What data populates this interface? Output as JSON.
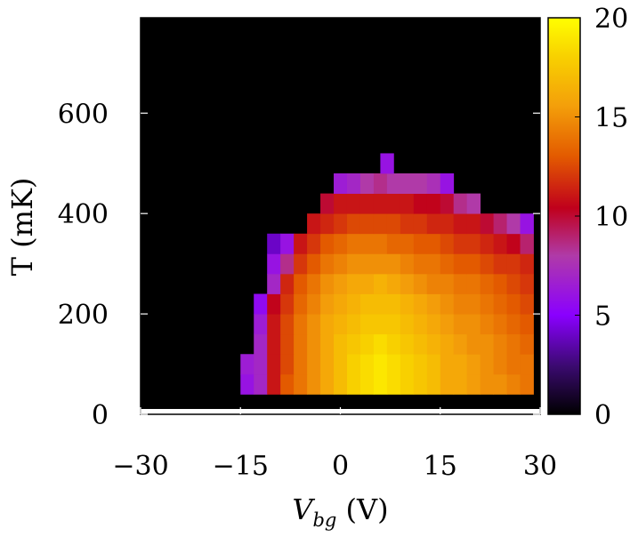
{
  "chart_data": {
    "type": "heatmap",
    "xlabel_main": "V",
    "xlabel_sub": "bg",
    "xlabel_unit": " (V)",
    "ylabel": "T (mK)",
    "xlim": [
      -30,
      30
    ],
    "ylim": [
      0,
      790
    ],
    "x_ticks": [
      {
        "value": -30,
        "label": "−30"
      },
      {
        "value": -15,
        "label": "−15"
      },
      {
        "value": 0,
        "label": "0"
      },
      {
        "value": 15,
        "label": "15"
      },
      {
        "value": 30,
        "label": "30"
      }
    ],
    "y_ticks": [
      {
        "value": 0,
        "label": "0"
      },
      {
        "value": 200,
        "label": "200"
      },
      {
        "value": 400,
        "label": "400"
      },
      {
        "value": 600,
        "label": "600"
      }
    ],
    "colorbar": {
      "min": 0,
      "max": 20,
      "ticks": [
        {
          "value": 0,
          "label": "0"
        },
        {
          "value": 5,
          "label": "5"
        },
        {
          "value": 10,
          "label": "10"
        },
        {
          "value": 15,
          "label": "15"
        },
        {
          "value": 20,
          "label": "20"
        }
      ],
      "colormap": [
        "#000000",
        "#3a0a6e",
        "#8a00ff",
        "#b03aa8",
        "#c0001c",
        "#e35a00",
        "#f4a00a",
        "#f8d000",
        "#ffff00"
      ]
    },
    "background_color": "#000000",
    "grid": false,
    "cells": [
      {
        "x": -14,
        "y": 60,
        "v": 6
      },
      {
        "x": -12,
        "y": 60,
        "v": 7
      },
      {
        "x": -10,
        "y": 60,
        "v": 11
      },
      {
        "x": -8,
        "y": 60,
        "v": 13
      },
      {
        "x": -6,
        "y": 60,
        "v": 14
      },
      {
        "x": -4,
        "y": 60,
        "v": 15
      },
      {
        "x": -2,
        "y": 60,
        "v": 16
      },
      {
        "x": 0,
        "y": 60,
        "v": 17
      },
      {
        "x": 2,
        "y": 60,
        "v": 18
      },
      {
        "x": 4,
        "y": 60,
        "v": 18.5
      },
      {
        "x": 6,
        "y": 60,
        "v": 19
      },
      {
        "x": 8,
        "y": 60,
        "v": 18.5
      },
      {
        "x": 10,
        "y": 60,
        "v": 18
      },
      {
        "x": 12,
        "y": 60,
        "v": 17.5
      },
      {
        "x": 14,
        "y": 60,
        "v": 17
      },
      {
        "x": 16,
        "y": 60,
        "v": 16
      },
      {
        "x": 18,
        "y": 60,
        "v": 16
      },
      {
        "x": 20,
        "y": 60,
        "v": 15.5
      },
      {
        "x": 22,
        "y": 60,
        "v": 15
      },
      {
        "x": 24,
        "y": 60,
        "v": 15
      },
      {
        "x": 26,
        "y": 60,
        "v": 14.5
      },
      {
        "x": 28,
        "y": 60,
        "v": 14
      },
      {
        "x": -14,
        "y": 100,
        "v": 6.5
      },
      {
        "x": -12,
        "y": 100,
        "v": 7
      },
      {
        "x": -10,
        "y": 100,
        "v": 11
      },
      {
        "x": -8,
        "y": 100,
        "v": 12.5
      },
      {
        "x": -6,
        "y": 100,
        "v": 14
      },
      {
        "x": -4,
        "y": 100,
        "v": 15
      },
      {
        "x": -2,
        "y": 100,
        "v": 16
      },
      {
        "x": 0,
        "y": 100,
        "v": 17
      },
      {
        "x": 2,
        "y": 100,
        "v": 18
      },
      {
        "x": 4,
        "y": 100,
        "v": 18.5
      },
      {
        "x": 6,
        "y": 100,
        "v": 19
      },
      {
        "x": 8,
        "y": 100,
        "v": 18.5
      },
      {
        "x": 10,
        "y": 100,
        "v": 18
      },
      {
        "x": 12,
        "y": 100,
        "v": 17.5
      },
      {
        "x": 14,
        "y": 100,
        "v": 17
      },
      {
        "x": 16,
        "y": 100,
        "v": 16
      },
      {
        "x": 18,
        "y": 100,
        "v": 16
      },
      {
        "x": 20,
        "y": 100,
        "v": 15.5
      },
      {
        "x": 22,
        "y": 100,
        "v": 15
      },
      {
        "x": 24,
        "y": 100,
        "v": 14.5
      },
      {
        "x": 26,
        "y": 100,
        "v": 14
      },
      {
        "x": 28,
        "y": 100,
        "v": 14
      },
      {
        "x": -12,
        "y": 140,
        "v": 7
      },
      {
        "x": -10,
        "y": 140,
        "v": 11
      },
      {
        "x": -8,
        "y": 140,
        "v": 12.5
      },
      {
        "x": -6,
        "y": 140,
        "v": 14
      },
      {
        "x": -4,
        "y": 140,
        "v": 15
      },
      {
        "x": -2,
        "y": 140,
        "v": 16
      },
      {
        "x": 0,
        "y": 140,
        "v": 17
      },
      {
        "x": 2,
        "y": 140,
        "v": 17.5
      },
      {
        "x": 4,
        "y": 140,
        "v": 18
      },
      {
        "x": 6,
        "y": 140,
        "v": 18.5
      },
      {
        "x": 8,
        "y": 140,
        "v": 18
      },
      {
        "x": 10,
        "y": 140,
        "v": 17.5
      },
      {
        "x": 12,
        "y": 140,
        "v": 17
      },
      {
        "x": 14,
        "y": 140,
        "v": 16.5
      },
      {
        "x": 16,
        "y": 140,
        "v": 16
      },
      {
        "x": 18,
        "y": 140,
        "v": 15.5
      },
      {
        "x": 20,
        "y": 140,
        "v": 15
      },
      {
        "x": 22,
        "y": 140,
        "v": 15
      },
      {
        "x": 24,
        "y": 140,
        "v": 14.5
      },
      {
        "x": 26,
        "y": 140,
        "v": 14
      },
      {
        "x": 28,
        "y": 140,
        "v": 13.5
      },
      {
        "x": -12,
        "y": 180,
        "v": 6.5
      },
      {
        "x": -10,
        "y": 180,
        "v": 11
      },
      {
        "x": -8,
        "y": 180,
        "v": 12.5
      },
      {
        "x": -6,
        "y": 180,
        "v": 14
      },
      {
        "x": -4,
        "y": 180,
        "v": 15
      },
      {
        "x": -2,
        "y": 180,
        "v": 16
      },
      {
        "x": 0,
        "y": 180,
        "v": 16.5
      },
      {
        "x": 2,
        "y": 180,
        "v": 17
      },
      {
        "x": 4,
        "y": 180,
        "v": 17.5
      },
      {
        "x": 6,
        "y": 180,
        "v": 17.5
      },
      {
        "x": 8,
        "y": 180,
        "v": 17.5
      },
      {
        "x": 10,
        "y": 180,
        "v": 17
      },
      {
        "x": 12,
        "y": 180,
        "v": 16.5
      },
      {
        "x": 14,
        "y": 180,
        "v": 16
      },
      {
        "x": 16,
        "y": 180,
        "v": 15.5
      },
      {
        "x": 18,
        "y": 180,
        "v": 15
      },
      {
        "x": 20,
        "y": 180,
        "v": 15
      },
      {
        "x": 22,
        "y": 180,
        "v": 14.5
      },
      {
        "x": 24,
        "y": 180,
        "v": 14
      },
      {
        "x": 26,
        "y": 180,
        "v": 13.5
      },
      {
        "x": 28,
        "y": 180,
        "v": 13
      },
      {
        "x": -12,
        "y": 220,
        "v": 5.5
      },
      {
        "x": -10,
        "y": 220,
        "v": 10.5
      },
      {
        "x": -8,
        "y": 220,
        "v": 12
      },
      {
        "x": -6,
        "y": 220,
        "v": 13.5
      },
      {
        "x": -4,
        "y": 220,
        "v": 14.5
      },
      {
        "x": -2,
        "y": 220,
        "v": 15.5
      },
      {
        "x": 0,
        "y": 220,
        "v": 16
      },
      {
        "x": 2,
        "y": 220,
        "v": 16.5
      },
      {
        "x": 4,
        "y": 220,
        "v": 17
      },
      {
        "x": 6,
        "y": 220,
        "v": 17
      },
      {
        "x": 8,
        "y": 220,
        "v": 17
      },
      {
        "x": 10,
        "y": 220,
        "v": 16.5
      },
      {
        "x": 12,
        "y": 220,
        "v": 16
      },
      {
        "x": 14,
        "y": 220,
        "v": 15.5
      },
      {
        "x": 16,
        "y": 220,
        "v": 15
      },
      {
        "x": 18,
        "y": 220,
        "v": 14.5
      },
      {
        "x": 20,
        "y": 220,
        "v": 14.5
      },
      {
        "x": 22,
        "y": 220,
        "v": 14
      },
      {
        "x": 24,
        "y": 220,
        "v": 13.5
      },
      {
        "x": 26,
        "y": 220,
        "v": 13
      },
      {
        "x": 28,
        "y": 220,
        "v": 12.5
      },
      {
        "x": -10,
        "y": 260,
        "v": 7
      },
      {
        "x": -8,
        "y": 260,
        "v": 11.5
      },
      {
        "x": -6,
        "y": 260,
        "v": 13
      },
      {
        "x": -4,
        "y": 260,
        "v": 14
      },
      {
        "x": -2,
        "y": 260,
        "v": 15
      },
      {
        "x": 0,
        "y": 260,
        "v": 15.5
      },
      {
        "x": 2,
        "y": 260,
        "v": 16
      },
      {
        "x": 4,
        "y": 260,
        "v": 16
      },
      {
        "x": 6,
        "y": 260,
        "v": 16.5
      },
      {
        "x": 8,
        "y": 260,
        "v": 16
      },
      {
        "x": 10,
        "y": 260,
        "v": 15.5
      },
      {
        "x": 12,
        "y": 260,
        "v": 15
      },
      {
        "x": 14,
        "y": 260,
        "v": 14.5
      },
      {
        "x": 16,
        "y": 260,
        "v": 14.5
      },
      {
        "x": 18,
        "y": 260,
        "v": 14
      },
      {
        "x": 20,
        "y": 260,
        "v": 14
      },
      {
        "x": 22,
        "y": 260,
        "v": 13.5
      },
      {
        "x": 24,
        "y": 260,
        "v": 13
      },
      {
        "x": 26,
        "y": 260,
        "v": 12.5
      },
      {
        "x": 28,
        "y": 260,
        "v": 12
      },
      {
        "x": -10,
        "y": 300,
        "v": 6
      },
      {
        "x": -8,
        "y": 300,
        "v": 8.5
      },
      {
        "x": -6,
        "y": 300,
        "v": 12
      },
      {
        "x": -4,
        "y": 300,
        "v": 13
      },
      {
        "x": -2,
        "y": 300,
        "v": 14
      },
      {
        "x": 0,
        "y": 300,
        "v": 14.5
      },
      {
        "x": 2,
        "y": 300,
        "v": 15
      },
      {
        "x": 4,
        "y": 300,
        "v": 15
      },
      {
        "x": 6,
        "y": 300,
        "v": 15
      },
      {
        "x": 8,
        "y": 300,
        "v": 15
      },
      {
        "x": 10,
        "y": 300,
        "v": 14.5
      },
      {
        "x": 12,
        "y": 300,
        "v": 14
      },
      {
        "x": 14,
        "y": 300,
        "v": 14
      },
      {
        "x": 16,
        "y": 300,
        "v": 13.5
      },
      {
        "x": 18,
        "y": 300,
        "v": 13
      },
      {
        "x": 20,
        "y": 300,
        "v": 13
      },
      {
        "x": 22,
        "y": 300,
        "v": 12.5
      },
      {
        "x": 24,
        "y": 300,
        "v": 12
      },
      {
        "x": 26,
        "y": 300,
        "v": 12
      },
      {
        "x": 28,
        "y": 300,
        "v": 11.5
      },
      {
        "x": -10,
        "y": 340,
        "v": 4
      },
      {
        "x": -8,
        "y": 340,
        "v": 6
      },
      {
        "x": -6,
        "y": 340,
        "v": 11
      },
      {
        "x": -4,
        "y": 340,
        "v": 12
      },
      {
        "x": -2,
        "y": 340,
        "v": 13
      },
      {
        "x": 0,
        "y": 340,
        "v": 13.5
      },
      {
        "x": 2,
        "y": 340,
        "v": 14
      },
      {
        "x": 4,
        "y": 340,
        "v": 14
      },
      {
        "x": 6,
        "y": 340,
        "v": 14
      },
      {
        "x": 8,
        "y": 340,
        "v": 13.5
      },
      {
        "x": 10,
        "y": 340,
        "v": 13.5
      },
      {
        "x": 12,
        "y": 340,
        "v": 13
      },
      {
        "x": 14,
        "y": 340,
        "v": 13
      },
      {
        "x": 16,
        "y": 340,
        "v": 12.5
      },
      {
        "x": 18,
        "y": 340,
        "v": 12
      },
      {
        "x": 20,
        "y": 340,
        "v": 12
      },
      {
        "x": 22,
        "y": 340,
        "v": 11.5
      },
      {
        "x": 24,
        "y": 340,
        "v": 11
      },
      {
        "x": 26,
        "y": 340,
        "v": 10.5
      },
      {
        "x": 28,
        "y": 340,
        "v": 9
      },
      {
        "x": -4,
        "y": 380,
        "v": 11
      },
      {
        "x": -2,
        "y": 380,
        "v": 11.5
      },
      {
        "x": 0,
        "y": 380,
        "v": 12
      },
      {
        "x": 2,
        "y": 380,
        "v": 12.5
      },
      {
        "x": 4,
        "y": 380,
        "v": 12.5
      },
      {
        "x": 6,
        "y": 380,
        "v": 12.5
      },
      {
        "x": 8,
        "y": 380,
        "v": 12.5
      },
      {
        "x": 10,
        "y": 380,
        "v": 12
      },
      {
        "x": 12,
        "y": 380,
        "v": 12
      },
      {
        "x": 14,
        "y": 380,
        "v": 11.5
      },
      {
        "x": 16,
        "y": 380,
        "v": 11.5
      },
      {
        "x": 18,
        "y": 380,
        "v": 11
      },
      {
        "x": 20,
        "y": 380,
        "v": 11
      },
      {
        "x": 22,
        "y": 380,
        "v": 10
      },
      {
        "x": 24,
        "y": 380,
        "v": 9
      },
      {
        "x": 26,
        "y": 380,
        "v": 8
      },
      {
        "x": 28,
        "y": 380,
        "v": 6
      },
      {
        "x": -2,
        "y": 420,
        "v": 10
      },
      {
        "x": 0,
        "y": 420,
        "v": 11
      },
      {
        "x": 2,
        "y": 420,
        "v": 11
      },
      {
        "x": 4,
        "y": 420,
        "v": 11
      },
      {
        "x": 6,
        "y": 420,
        "v": 11
      },
      {
        "x": 8,
        "y": 420,
        "v": 11
      },
      {
        "x": 10,
        "y": 420,
        "v": 11
      },
      {
        "x": 12,
        "y": 420,
        "v": 10.5
      },
      {
        "x": 14,
        "y": 420,
        "v": 10.5
      },
      {
        "x": 16,
        "y": 420,
        "v": 10
      },
      {
        "x": 18,
        "y": 420,
        "v": 8.5
      },
      {
        "x": 20,
        "y": 420,
        "v": 8
      },
      {
        "x": 0,
        "y": 460,
        "v": 6.5
      },
      {
        "x": 2,
        "y": 460,
        "v": 7
      },
      {
        "x": 4,
        "y": 460,
        "v": 8
      },
      {
        "x": 6,
        "y": 460,
        "v": 8.5
      },
      {
        "x": 8,
        "y": 460,
        "v": 8
      },
      {
        "x": 10,
        "y": 460,
        "v": 8
      },
      {
        "x": 12,
        "y": 460,
        "v": 8
      },
      {
        "x": 14,
        "y": 460,
        "v": 7.5
      },
      {
        "x": 16,
        "y": 460,
        "v": 6
      },
      {
        "x": 7,
        "y": 500,
        "v": 6
      }
    ]
  }
}
